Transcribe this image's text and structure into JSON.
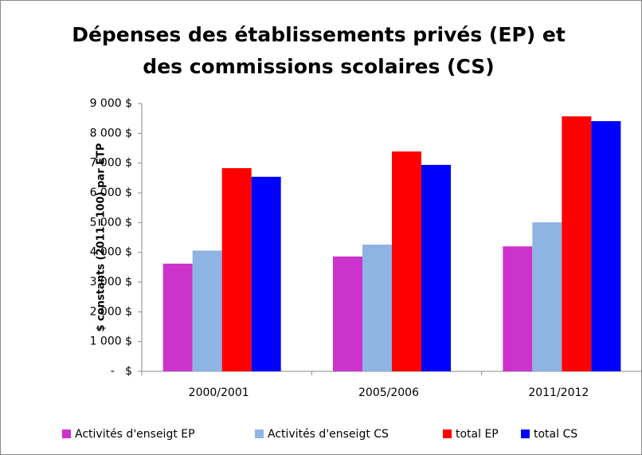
{
  "chart_data": {
    "type": "bar",
    "title": "Dépenses des établissements privés (EP) et des commissions scolaires (CS)",
    "y_label": "$ constants (2011=100) par ETP",
    "categories": [
      "2000/2001",
      "2005/2006",
      "2011/2012"
    ],
    "series": [
      {
        "name": "Activités d'enseigt EP",
        "color": "#cc33cc",
        "values": [
          3620,
          3860,
          4200
        ]
      },
      {
        "name": "Activités d'enseigt CS",
        "color": "#8db4e2",
        "values": [
          4060,
          4260,
          5010
        ]
      },
      {
        "name": "total EP",
        "color": "#ff0000",
        "values": [
          6830,
          7390,
          8570
        ]
      },
      {
        "name": "total CS",
        "color": "#0000ff",
        "values": [
          6540,
          6940,
          8410
        ]
      }
    ],
    "ylim": [
      0,
      9000
    ],
    "yticks": [
      {
        "value": 0,
        "label": "-   $"
      },
      {
        "value": 1000,
        "label": "1 000 $"
      },
      {
        "value": 2000,
        "label": "2 000 $"
      },
      {
        "value": 3000,
        "label": "3 000 $"
      },
      {
        "value": 4000,
        "label": "4 000 $"
      },
      {
        "value": 5000,
        "label": "5 000 $"
      },
      {
        "value": 6000,
        "label": "6 000 $"
      },
      {
        "value": 7000,
        "label": "7 000 $"
      },
      {
        "value": 8000,
        "label": "8 000 $"
      },
      {
        "value": 9000,
        "label": "9 000 $"
      }
    ],
    "grid": false,
    "legend": "bottom"
  }
}
